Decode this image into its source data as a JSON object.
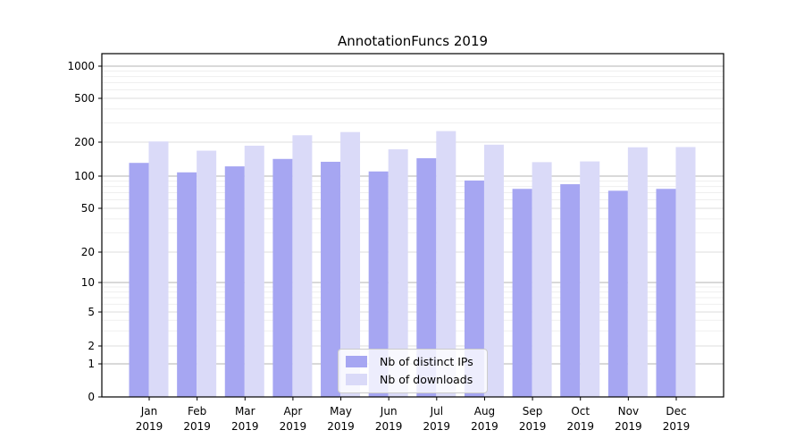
{
  "chart_data": {
    "type": "bar",
    "title": "AnnotationFuncs 2019",
    "categories": [
      "Jan",
      "Feb",
      "Mar",
      "Apr",
      "May",
      "Jun",
      "Jul",
      "Aug",
      "Sep",
      "Oct",
      "Nov",
      "Dec"
    ],
    "category_year": "2019",
    "series": [
      {
        "name": "Nb of distinct IPs",
        "color": "#a6a6f2",
        "values": [
          131,
          108,
          122,
          142,
          134,
          110,
          144,
          91,
          76,
          84,
          73,
          76
        ]
      },
      {
        "name": "Nb of downloads",
        "color": "#dadaf8",
        "values": [
          203,
          168,
          186,
          231,
          247,
          173,
          252,
          190,
          133,
          135,
          180,
          181
        ]
      }
    ],
    "yscale": "symlog",
    "y_ticks": [
      0,
      1,
      2,
      5,
      10,
      20,
      50,
      100,
      200,
      500,
      1000
    ],
    "ylim": [
      0,
      1300
    ],
    "grid": true,
    "legend_position": "lower-center",
    "colors": {
      "axis": "#000000",
      "major_grid": "#b3b3b3",
      "mid_grid": "#dcdcdc",
      "minor_grid": "#efefef",
      "text": "#000000"
    }
  }
}
